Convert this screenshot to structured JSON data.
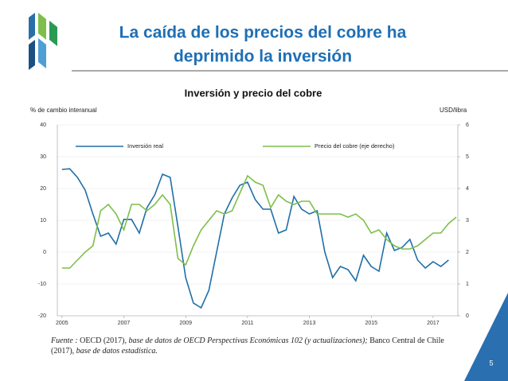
{
  "header": {
    "title_lines": [
      "La caída de los precios del cobre ha",
      "deprimido la inversión"
    ]
  },
  "chart_data": {
    "type": "line",
    "title": "Inversión y precio del cobre",
    "ylabel": "% de cambio interanual",
    "y2label": "USD/libra",
    "x": [
      2005,
      2005.25,
      2005.5,
      2005.75,
      2006,
      2006.25,
      2006.5,
      2006.75,
      2007,
      2007.25,
      2007.5,
      2007.75,
      2008,
      2008.25,
      2008.5,
      2008.75,
      2009,
      2009.25,
      2009.5,
      2009.75,
      2010,
      2010.25,
      2010.5,
      2010.75,
      2011,
      2011.25,
      2011.5,
      2011.75,
      2012,
      2012.25,
      2012.5,
      2012.75,
      2013,
      2013.25,
      2013.5,
      2013.75,
      2014,
      2014.25,
      2014.5,
      2014.75,
      2015,
      2015.25,
      2015.5,
      2015.75,
      2016,
      2016.25,
      2016.5,
      2016.75,
      2017,
      2017.25,
      2017.5,
      2017.75
    ],
    "series": [
      {
        "name": "Inversión real",
        "color": "#1f6fa8",
        "values": [
          26,
          26.2,
          23.5,
          19.5,
          12,
          5,
          6,
          2.5,
          10.3,
          10.3,
          6,
          14,
          18,
          24.5,
          23.5,
          8,
          -8,
          -16,
          -17.5,
          -12,
          0,
          12,
          17,
          21,
          22,
          16.5,
          13.5,
          13.5,
          6,
          7,
          17.5,
          13.5,
          12,
          13,
          0,
          -8,
          -4.5,
          -5.5,
          -9,
          -1,
          -4.5,
          -6,
          6,
          0.5,
          1.5,
          4,
          -2.5,
          -5,
          -3,
          -4.5,
          -2.5,
          null
        ]
      },
      {
        "name": "Precio del cobre (eje derecho)",
        "color": "#7dbf4a",
        "axis": "y2",
        "values": [
          1.5,
          1.5,
          1.75,
          2,
          2.2,
          3.3,
          3.5,
          3.2,
          2.7,
          3.5,
          3.5,
          3.3,
          3.5,
          3.8,
          3.5,
          1.8,
          1.6,
          2.2,
          2.7,
          3,
          3.3,
          3.2,
          3.3,
          3.85,
          4.4,
          4.2,
          4.1,
          3.4,
          3.8,
          3.6,
          3.5,
          3.6,
          3.6,
          3.2,
          3.2,
          3.2,
          3.2,
          3.1,
          3.2,
          3,
          2.6,
          2.7,
          2.4,
          2.2,
          2.1,
          2.1,
          2.2,
          2.4,
          2.6,
          2.6,
          2.9,
          3.1
        ]
      }
    ],
    "xlim": [
      2004.85,
      2017.8
    ],
    "xticks": [
      2005,
      2007,
      2009,
      2011,
      2013,
      2015,
      2017
    ],
    "ylim": [
      -20,
      40
    ],
    "yticks": [
      -20,
      -10,
      0,
      10,
      20,
      30,
      40
    ],
    "y2lim": [
      0,
      6
    ],
    "y2ticks": [
      0,
      1,
      2,
      3,
      4,
      5,
      6
    ],
    "grid": true
  },
  "footer": {
    "source": [
      {
        "text": "Fuente : ",
        "italic": true
      },
      {
        "text": "OECD (2017), ",
        "italic": false
      },
      {
        "text": "base de datos de OECD Perspectivas Económicas 102 (y actualizaciones); ",
        "italic": true
      },
      {
        "text": "Banco Central de Chile (2017), ",
        "italic": false
      },
      {
        "text": "base de datos estadística.",
        "italic": true
      }
    ],
    "page_number": "5"
  }
}
